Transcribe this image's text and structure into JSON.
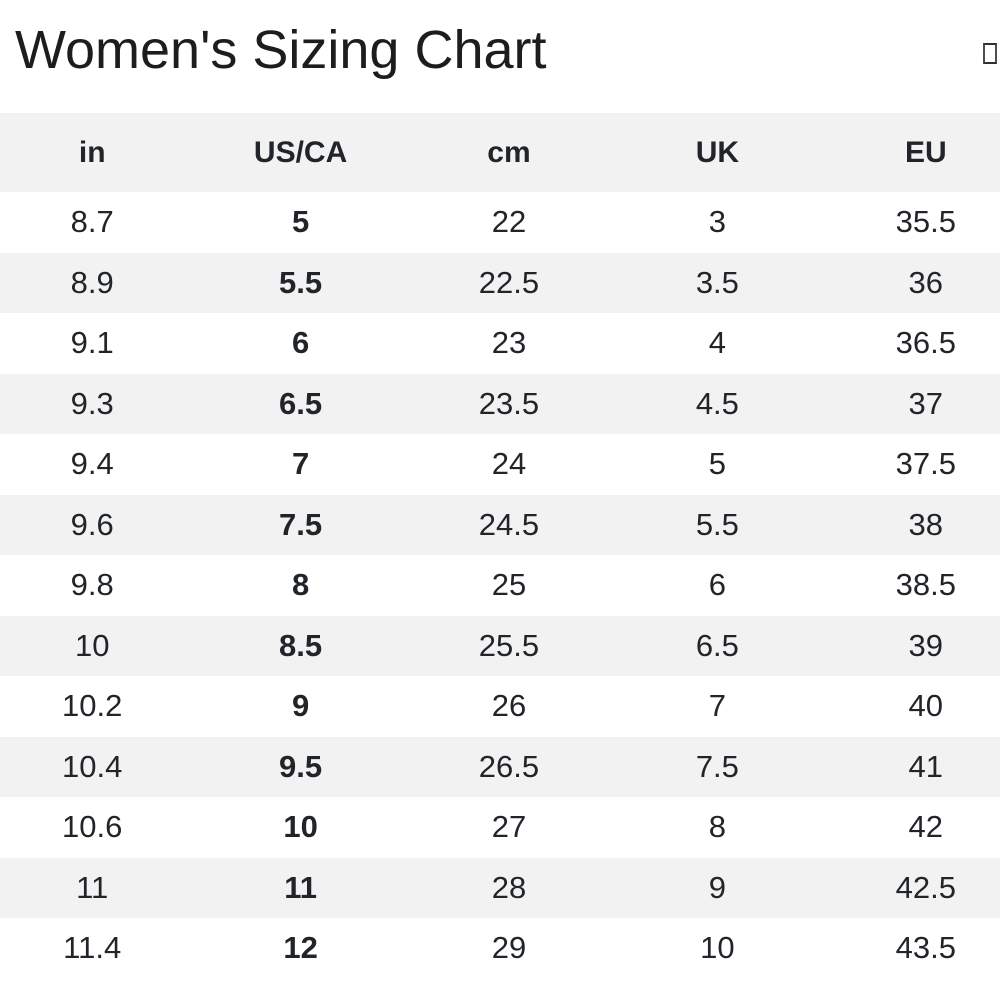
{
  "page": {
    "title": "Women's Sizing Chart",
    "title_icon": "missing-glyph-box",
    "background_color": "#ffffff"
  },
  "table": {
    "columns": [
      "in",
      "US/CA",
      "cm",
      "UK",
      "EU"
    ],
    "bold_column": "US/CA",
    "stripe_color": "#f2f2f2",
    "text_color": "#212529",
    "rows": [
      [
        "8.7",
        "5",
        "22",
        "3",
        "35.5"
      ],
      [
        "8.9",
        "5.5",
        "22.5",
        "3.5",
        "36"
      ],
      [
        "9.1",
        "6",
        "23",
        "4",
        "36.5"
      ],
      [
        "9.3",
        "6.5",
        "23.5",
        "4.5",
        "37"
      ],
      [
        "9.4",
        "7",
        "24",
        "5",
        "37.5"
      ],
      [
        "9.6",
        "7.5",
        "24.5",
        "5.5",
        "38"
      ],
      [
        "9.8",
        "8",
        "25",
        "6",
        "38.5"
      ],
      [
        "10",
        "8.5",
        "25.5",
        "6.5",
        "39"
      ],
      [
        "10.2",
        "9",
        "26",
        "7",
        "40"
      ],
      [
        "10.4",
        "9.5",
        "26.5",
        "7.5",
        "41"
      ],
      [
        "10.6",
        "10",
        "27",
        "8",
        "42"
      ],
      [
        "11",
        "11",
        "28",
        "9",
        "42.5"
      ],
      [
        "11.4",
        "12",
        "29",
        "10",
        "43.5"
      ]
    ]
  }
}
